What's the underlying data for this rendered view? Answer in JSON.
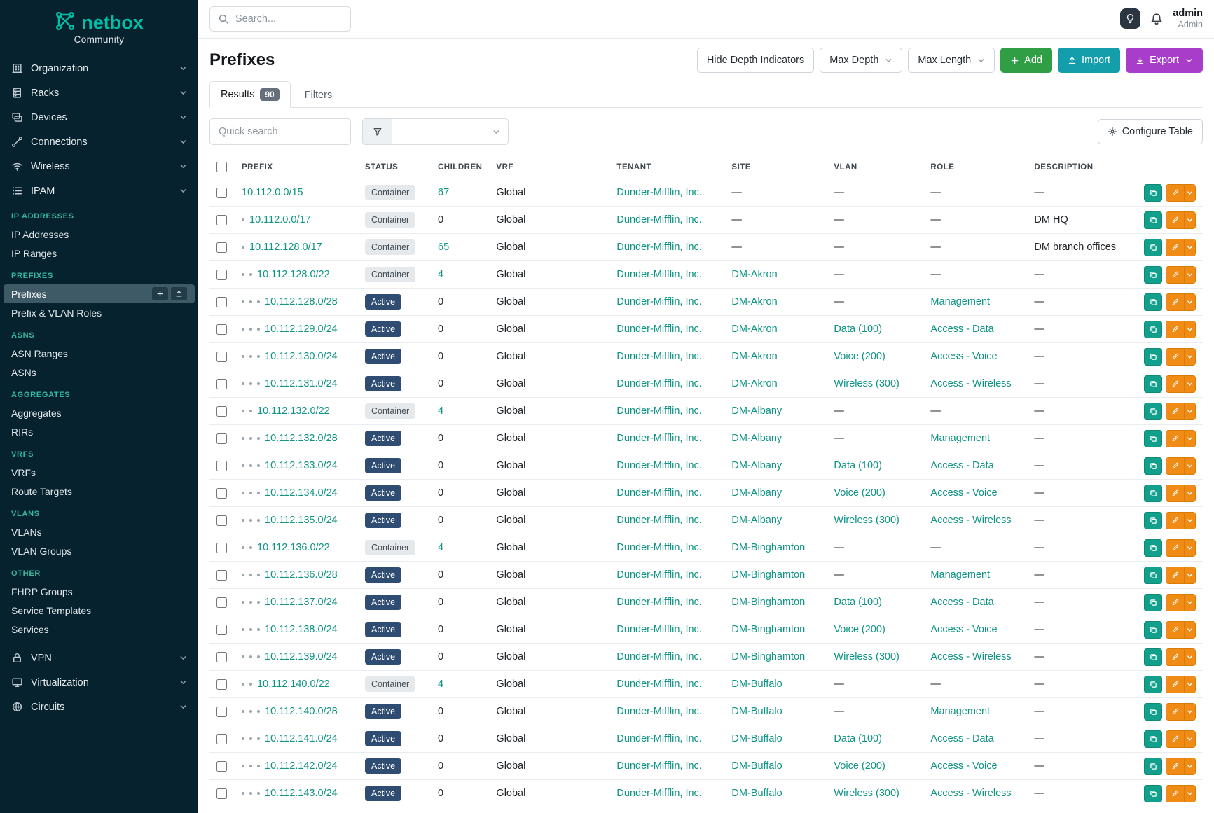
{
  "brand": {
    "name": "netbox",
    "subtitle": "Community"
  },
  "topbar": {
    "search_placeholder": "Search...",
    "user_name": "admin",
    "user_role": "Admin"
  },
  "sidebar": {
    "top_items": [
      {
        "label": "Organization",
        "icon": "building"
      },
      {
        "label": "Racks",
        "icon": "rack"
      },
      {
        "label": "Devices",
        "icon": "devices"
      },
      {
        "label": "Connections",
        "icon": "connections"
      },
      {
        "label": "Wireless",
        "icon": "wifi"
      },
      {
        "label": "IPAM",
        "icon": "list"
      }
    ],
    "sections": [
      {
        "label": "IP ADDRESSES",
        "items": [
          "IP Addresses",
          "IP Ranges"
        ]
      },
      {
        "label": "PREFIXES",
        "items": [
          "Prefixes",
          "Prefix & VLAN Roles"
        ]
      },
      {
        "label": "ASNS",
        "items": [
          "ASN Ranges",
          "ASNs"
        ]
      },
      {
        "label": "AGGREGATES",
        "items": [
          "Aggregates",
          "RIRs"
        ]
      },
      {
        "label": "VRFS",
        "items": [
          "VRFs",
          "Route Targets"
        ]
      },
      {
        "label": "VLANS",
        "items": [
          "VLANs",
          "VLAN Groups"
        ]
      },
      {
        "label": "OTHER",
        "items": [
          "FHRP Groups",
          "Service Templates",
          "Services"
        ]
      }
    ],
    "bottom_items": [
      {
        "label": "VPN",
        "icon": "lock"
      },
      {
        "label": "Virtualization",
        "icon": "monitor"
      },
      {
        "label": "Circuits",
        "icon": "globe"
      }
    ],
    "active_item": "Prefixes"
  },
  "page": {
    "title": "Prefixes",
    "actions": {
      "hide_depth": "Hide Depth Indicators",
      "max_depth": "Max Depth",
      "max_length": "Max Length",
      "add": "Add",
      "import": "Import",
      "export": "Export"
    },
    "tabs": [
      {
        "label": "Results",
        "count": "90"
      },
      {
        "label": "Filters",
        "count": ""
      }
    ],
    "quick_search_placeholder": "Quick search",
    "configure_table": "Configure Table"
  },
  "table": {
    "columns": [
      "PREFIX",
      "STATUS",
      "CHILDREN",
      "VRF",
      "TENANT",
      "SITE",
      "VLAN",
      "ROLE",
      "DESCRIPTION"
    ],
    "rows": [
      {
        "depth": 0,
        "prefix": "10.112.0.0/15",
        "status": "Container",
        "children": "67",
        "vrf": "Global",
        "tenant": "Dunder-Mifflin, Inc.",
        "site": "—",
        "vlan": "—",
        "role": "—",
        "description": "—"
      },
      {
        "depth": 1,
        "prefix": "10.112.0.0/17",
        "status": "Container",
        "children": "0",
        "vrf": "Global",
        "tenant": "Dunder-Mifflin, Inc.",
        "site": "—",
        "vlan": "—",
        "role": "—",
        "description": "DM HQ"
      },
      {
        "depth": 1,
        "prefix": "10.112.128.0/17",
        "status": "Container",
        "children": "65",
        "vrf": "Global",
        "tenant": "Dunder-Mifflin, Inc.",
        "site": "—",
        "vlan": "—",
        "role": "—",
        "description": "DM branch offices"
      },
      {
        "depth": 2,
        "prefix": "10.112.128.0/22",
        "status": "Container",
        "children": "4",
        "vrf": "Global",
        "tenant": "Dunder-Mifflin, Inc.",
        "site": "DM-Akron",
        "vlan": "—",
        "role": "—",
        "description": "—"
      },
      {
        "depth": 3,
        "prefix": "10.112.128.0/28",
        "status": "Active",
        "children": "0",
        "vrf": "Global",
        "tenant": "Dunder-Mifflin, Inc.",
        "site": "DM-Akron",
        "vlan": "—",
        "role": "Management",
        "description": "—"
      },
      {
        "depth": 3,
        "prefix": "10.112.129.0/24",
        "status": "Active",
        "children": "0",
        "vrf": "Global",
        "tenant": "Dunder-Mifflin, Inc.",
        "site": "DM-Akron",
        "vlan": "Data (100)",
        "role": "Access - Data",
        "description": "—"
      },
      {
        "depth": 3,
        "prefix": "10.112.130.0/24",
        "status": "Active",
        "children": "0",
        "vrf": "Global",
        "tenant": "Dunder-Mifflin, Inc.",
        "site": "DM-Akron",
        "vlan": "Voice (200)",
        "role": "Access - Voice",
        "description": "—"
      },
      {
        "depth": 3,
        "prefix": "10.112.131.0/24",
        "status": "Active",
        "children": "0",
        "vrf": "Global",
        "tenant": "Dunder-Mifflin, Inc.",
        "site": "DM-Akron",
        "vlan": "Wireless (300)",
        "role": "Access - Wireless",
        "description": "—"
      },
      {
        "depth": 2,
        "prefix": "10.112.132.0/22",
        "status": "Container",
        "children": "4",
        "vrf": "Global",
        "tenant": "Dunder-Mifflin, Inc.",
        "site": "DM-Albany",
        "vlan": "—",
        "role": "—",
        "description": "—"
      },
      {
        "depth": 3,
        "prefix": "10.112.132.0/28",
        "status": "Active",
        "children": "0",
        "vrf": "Global",
        "tenant": "Dunder-Mifflin, Inc.",
        "site": "DM-Albany",
        "vlan": "—",
        "role": "Management",
        "description": "—"
      },
      {
        "depth": 3,
        "prefix": "10.112.133.0/24",
        "status": "Active",
        "children": "0",
        "vrf": "Global",
        "tenant": "Dunder-Mifflin, Inc.",
        "site": "DM-Albany",
        "vlan": "Data (100)",
        "role": "Access - Data",
        "description": "—"
      },
      {
        "depth": 3,
        "prefix": "10.112.134.0/24",
        "status": "Active",
        "children": "0",
        "vrf": "Global",
        "tenant": "Dunder-Mifflin, Inc.",
        "site": "DM-Albany",
        "vlan": "Voice (200)",
        "role": "Access - Voice",
        "description": "—"
      },
      {
        "depth": 3,
        "prefix": "10.112.135.0/24",
        "status": "Active",
        "children": "0",
        "vrf": "Global",
        "tenant": "Dunder-Mifflin, Inc.",
        "site": "DM-Albany",
        "vlan": "Wireless (300)",
        "role": "Access - Wireless",
        "description": "—"
      },
      {
        "depth": 2,
        "prefix": "10.112.136.0/22",
        "status": "Container",
        "children": "4",
        "vrf": "Global",
        "tenant": "Dunder-Mifflin, Inc.",
        "site": "DM-Binghamton",
        "vlan": "—",
        "role": "—",
        "description": "—"
      },
      {
        "depth": 3,
        "prefix": "10.112.136.0/28",
        "status": "Active",
        "children": "0",
        "vrf": "Global",
        "tenant": "Dunder-Mifflin, Inc.",
        "site": "DM-Binghamton",
        "vlan": "—",
        "role": "Management",
        "description": "—"
      },
      {
        "depth": 3,
        "prefix": "10.112.137.0/24",
        "status": "Active",
        "children": "0",
        "vrf": "Global",
        "tenant": "Dunder-Mifflin, Inc.",
        "site": "DM-Binghamton",
        "vlan": "Data (100)",
        "role": "Access - Data",
        "description": "—"
      },
      {
        "depth": 3,
        "prefix": "10.112.138.0/24",
        "status": "Active",
        "children": "0",
        "vrf": "Global",
        "tenant": "Dunder-Mifflin, Inc.",
        "site": "DM-Binghamton",
        "vlan": "Voice (200)",
        "role": "Access - Voice",
        "description": "—"
      },
      {
        "depth": 3,
        "prefix": "10.112.139.0/24",
        "status": "Active",
        "children": "0",
        "vrf": "Global",
        "tenant": "Dunder-Mifflin, Inc.",
        "site": "DM-Binghamton",
        "vlan": "Wireless (300)",
        "role": "Access - Wireless",
        "description": "—"
      },
      {
        "depth": 2,
        "prefix": "10.112.140.0/22",
        "status": "Container",
        "children": "4",
        "vrf": "Global",
        "tenant": "Dunder-Mifflin, Inc.",
        "site": "DM-Buffalo",
        "vlan": "—",
        "role": "—",
        "description": "—"
      },
      {
        "depth": 3,
        "prefix": "10.112.140.0/28",
        "status": "Active",
        "children": "0",
        "vrf": "Global",
        "tenant": "Dunder-Mifflin, Inc.",
        "site": "DM-Buffalo",
        "vlan": "—",
        "role": "Management",
        "description": "—"
      },
      {
        "depth": 3,
        "prefix": "10.112.141.0/24",
        "status": "Active",
        "children": "0",
        "vrf": "Global",
        "tenant": "Dunder-Mifflin, Inc.",
        "site": "DM-Buffalo",
        "vlan": "Data (100)",
        "role": "Access - Data",
        "description": "—"
      },
      {
        "depth": 3,
        "prefix": "10.112.142.0/24",
        "status": "Active",
        "children": "0",
        "vrf": "Global",
        "tenant": "Dunder-Mifflin, Inc.",
        "site": "DM-Buffalo",
        "vlan": "Voice (200)",
        "role": "Access - Voice",
        "description": "—"
      },
      {
        "depth": 3,
        "prefix": "10.112.143.0/24",
        "status": "Active",
        "children": "0",
        "vrf": "Global",
        "tenant": "Dunder-Mifflin, Inc.",
        "site": "DM-Buffalo",
        "vlan": "Wireless (300)",
        "role": "Access - Wireless",
        "description": "—"
      }
    ]
  },
  "colors": {
    "sidebar_bg": "#05222e",
    "brand_teal": "#00bfa8",
    "link_teal": "#0e9384",
    "status_active_bg": "#2f4d73",
    "status_container_bg": "#e5e9ec",
    "add_green": "#2f9e44",
    "import_teal": "#149daa",
    "export_purple": "#a73dc8",
    "edit_orange": "#f08c16",
    "clone_teal": "#12a08c"
  }
}
